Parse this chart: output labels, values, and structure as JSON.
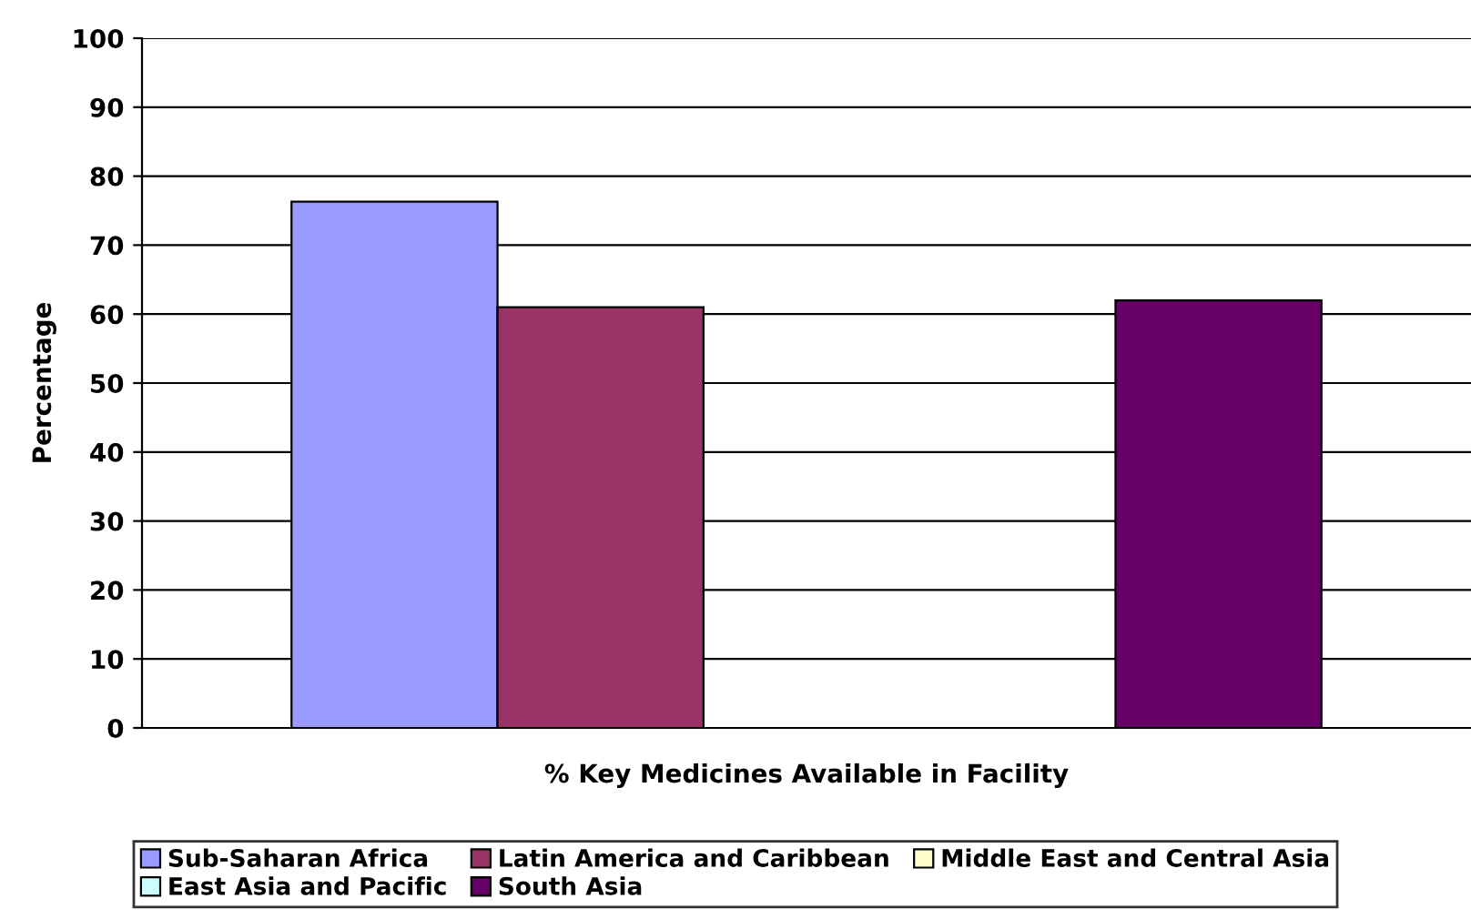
{
  "chart_data": {
    "type": "bar",
    "ylabel": "Percentage",
    "categories": [
      "% Key Medicines Available in Facility"
    ],
    "series": [
      {
        "name": "Sub-Saharan Africa",
        "color": "#9999ff",
        "values": [
          76.3
        ]
      },
      {
        "name": "Latin America and Caribbean",
        "color": "#993366",
        "values": [
          61
        ]
      },
      {
        "name": "Middle East and Central Asia",
        "color": "#ffffcc",
        "values": [
          null
        ]
      },
      {
        "name": "East Asia and Pacific",
        "color": "#ccffff",
        "values": [
          null
        ]
      },
      {
        "name": "South Asia",
        "color": "#660066",
        "values": [
          62
        ]
      }
    ],
    "ylim": [
      0,
      100
    ],
    "yticks": [
      0,
      10,
      20,
      30,
      40,
      50,
      60,
      70,
      80,
      90,
      100
    ],
    "grid": "y",
    "legend": "bottom"
  }
}
